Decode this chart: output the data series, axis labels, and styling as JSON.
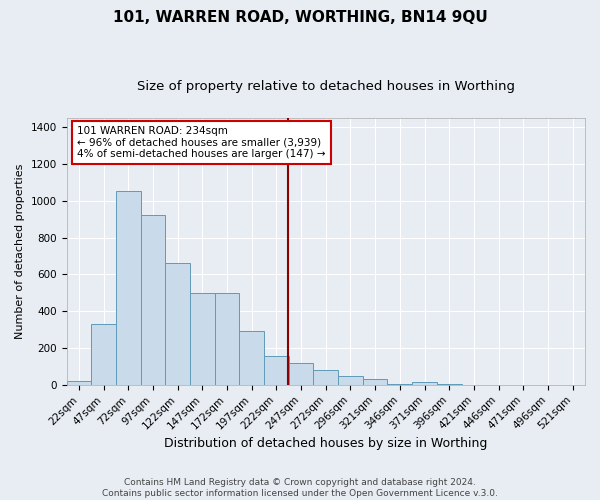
{
  "title": "101, WARREN ROAD, WORTHING, BN14 9QU",
  "subtitle": "Size of property relative to detached houses in Worthing",
  "xlabel": "Distribution of detached houses by size in Worthing",
  "ylabel": "Number of detached properties",
  "categories": [
    "22sqm",
    "47sqm",
    "72sqm",
    "97sqm",
    "122sqm",
    "147sqm",
    "172sqm",
    "197sqm",
    "222sqm",
    "247sqm",
    "272sqm",
    "296sqm",
    "321sqm",
    "346sqm",
    "371sqm",
    "396sqm",
    "421sqm",
    "446sqm",
    "471sqm",
    "496sqm",
    "521sqm"
  ],
  "values": [
    20,
    330,
    1050,
    920,
    660,
    500,
    500,
    290,
    155,
    120,
    80,
    50,
    30,
    5,
    15,
    5,
    0,
    0,
    0,
    0,
    0
  ],
  "bar_color": "#c9daea",
  "bar_edge_color": "#5f9ab8",
  "vline_color": "#8b0000",
  "annotation_text": "101 WARREN ROAD: 234sqm\n← 96% of detached houses are smaller (3,939)\n4% of semi-detached houses are larger (147) →",
  "annotation_box_color": "#ffffff",
  "annotation_box_edge": "#cc0000",
  "footer_line1": "Contains HM Land Registry data © Crown copyright and database right 2024.",
  "footer_line2": "Contains public sector information licensed under the Open Government Licence v.3.0.",
  "ylim": [
    0,
    1450
  ],
  "yticks": [
    0,
    200,
    400,
    600,
    800,
    1000,
    1200,
    1400
  ],
  "bg_color": "#e8edf3",
  "grid_color": "#ffffff",
  "title_fontsize": 11,
  "subtitle_fontsize": 9.5,
  "ylabel_fontsize": 8,
  "xlabel_fontsize": 9,
  "tick_fontsize": 7.5,
  "annotation_fontsize": 7.5,
  "footer_fontsize": 6.5
}
